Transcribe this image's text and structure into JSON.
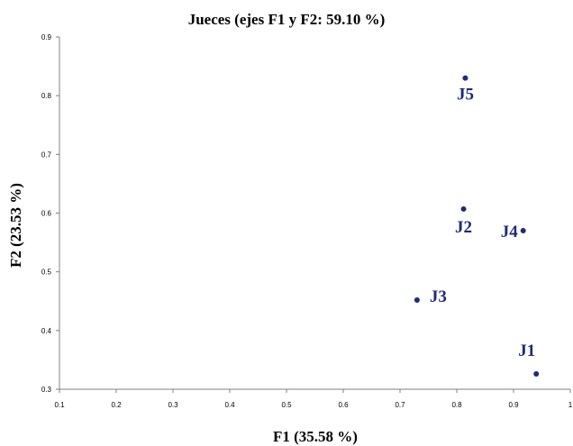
{
  "chart_data": {
    "type": "scatter",
    "title": "Jueces (ejes F1 y F2: 59.10 %)",
    "xlabel": "F1 (35.58 %)",
    "ylabel": "F2 (23.53 %)",
    "xlim": [
      0.1,
      1.0
    ],
    "ylim": [
      0.3,
      0.9
    ],
    "xticks": [
      "0.1",
      "0.2",
      "0.3",
      "0.4",
      "0.5",
      "0.6",
      "0.7",
      "0.8",
      "0.9",
      "1"
    ],
    "yticks": [
      "0.3",
      "0.4",
      "0.5",
      "0.6",
      "0.7",
      "0.8",
      "0.9"
    ],
    "grid": false,
    "color": "#1f2a7a",
    "points": [
      {
        "label": "J1",
        "x": 0.94,
        "y": 0.326
      },
      {
        "label": "J2",
        "x": 0.812,
        "y": 0.607
      },
      {
        "label": "J3",
        "x": 0.73,
        "y": 0.452
      },
      {
        "label": "J4",
        "x": 0.917,
        "y": 0.57
      },
      {
        "label": "J5",
        "x": 0.815,
        "y": 0.83
      }
    ]
  }
}
